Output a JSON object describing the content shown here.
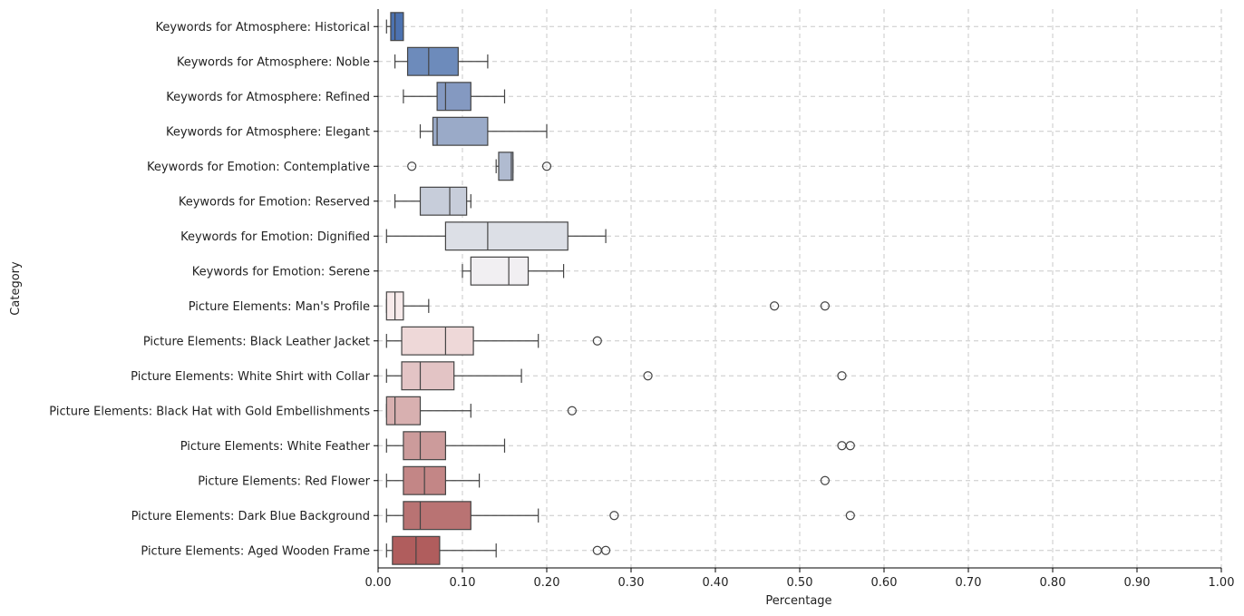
{
  "chart_data": {
    "type": "box",
    "xlabel": "Percentage",
    "ylabel": "Category",
    "xlim": [
      0.0,
      1.0
    ],
    "xticks": [
      "0.00",
      "0.10",
      "0.20",
      "0.30",
      "0.40",
      "0.50",
      "0.60",
      "0.70",
      "0.80",
      "0.90",
      "1.00"
    ],
    "grid": true,
    "series": [
      {
        "name": "Keywords for Atmosphere: Historical",
        "whislo": 0.01,
        "q1": 0.015,
        "med": 0.02,
        "q3": 0.03,
        "whishi": 0.03,
        "fliers": [],
        "color": "#4c72b0"
      },
      {
        "name": "Keywords for Atmosphere: Noble",
        "whislo": 0.02,
        "q1": 0.035,
        "med": 0.06,
        "q3": 0.095,
        "whishi": 0.13,
        "fliers": [],
        "color": "#6d8bbb"
      },
      {
        "name": "Keywords for Atmosphere: Refined",
        "whislo": 0.03,
        "q1": 0.07,
        "med": 0.08,
        "q3": 0.11,
        "whishi": 0.15,
        "fliers": [],
        "color": "#8499c1"
      },
      {
        "name": "Keywords for Atmosphere: Elegant",
        "whislo": 0.05,
        "q1": 0.065,
        "med": 0.07,
        "q3": 0.13,
        "whishi": 0.2,
        "fliers": [],
        "color": "#9aaac8"
      },
      {
        "name": "Keywords for Emotion: Contemplative",
        "whislo": 0.14,
        "q1": 0.143,
        "med": 0.158,
        "q3": 0.16,
        "whishi": 0.16,
        "fliers": [
          0.04,
          0.2
        ],
        "color": "#b0bbd0"
      },
      {
        "name": "Keywords for Emotion: Reserved",
        "whislo": 0.02,
        "q1": 0.05,
        "med": 0.085,
        "q3": 0.105,
        "whishi": 0.11,
        "fliers": [],
        "color": "#c7cdda"
      },
      {
        "name": "Keywords for Emotion: Dignified",
        "whislo": 0.01,
        "q1": 0.08,
        "med": 0.13,
        "q3": 0.225,
        "whishi": 0.27,
        "fliers": [],
        "color": "#dcdfe6"
      },
      {
        "name": "Keywords for Emotion: Serene",
        "whislo": 0.1,
        "q1": 0.11,
        "med": 0.155,
        "q3": 0.178,
        "whishi": 0.22,
        "fliers": [],
        "color": "#f1eff2"
      },
      {
        "name": "Picture Elements: Man's Profile",
        "whislo": 0.01,
        "q1": 0.01,
        "med": 0.02,
        "q3": 0.03,
        "whishi": 0.06,
        "fliers": [
          0.47,
          0.53
        ],
        "color": "#f7eaea"
      },
      {
        "name": "Picture Elements: Black Leather Jacket",
        "whislo": 0.01,
        "q1": 0.028,
        "med": 0.08,
        "q3": 0.113,
        "whishi": 0.19,
        "fliers": [
          0.26
        ],
        "color": "#eed8d8"
      },
      {
        "name": "Picture Elements: White Shirt with Collar",
        "whislo": 0.01,
        "q1": 0.028,
        "med": 0.05,
        "q3": 0.09,
        "whishi": 0.17,
        "fliers": [
          0.32,
          0.55
        ],
        "color": "#e3c4c5"
      },
      {
        "name": "Picture Elements: Black Hat with Gold Embellishments",
        "whislo": 0.01,
        "q1": 0.01,
        "med": 0.02,
        "q3": 0.05,
        "whishi": 0.11,
        "fliers": [
          0.23
        ],
        "color": "#d8b0b0"
      },
      {
        "name": "Picture Elements: White Feather",
        "whislo": 0.01,
        "q1": 0.03,
        "med": 0.05,
        "q3": 0.08,
        "whishi": 0.15,
        "fliers": [
          0.55,
          0.56
        ],
        "color": "#cc9b9b"
      },
      {
        "name": "Picture Elements: Red Flower",
        "whislo": 0.01,
        "q1": 0.03,
        "med": 0.055,
        "q3": 0.08,
        "whishi": 0.12,
        "fliers": [
          0.53
        ],
        "color": "#c38686"
      },
      {
        "name": "Picture Elements: Dark Blue Background",
        "whislo": 0.01,
        "q1": 0.03,
        "med": 0.05,
        "q3": 0.11,
        "whishi": 0.19,
        "fliers": [
          0.28,
          0.56
        ],
        "color": "#b97373"
      },
      {
        "name": "Picture Elements: Aged Wooden Frame",
        "whislo": 0.01,
        "q1": 0.017,
        "med": 0.045,
        "q3": 0.073,
        "whishi": 0.14,
        "fliers": [
          0.26,
          0.27
        ],
        "color": "#b05d5d"
      }
    ]
  }
}
